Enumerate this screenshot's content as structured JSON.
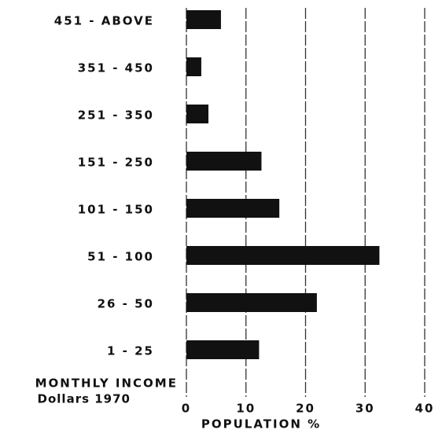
{
  "chart_data": {
    "type": "barh",
    "categories": [
      "1 - 25",
      "26 - 50",
      "51 - 100",
      "101 - 150",
      "151 - 250",
      "251 - 350",
      "351 - 450",
      "451 - ABOVE"
    ],
    "values": [
      12.2,
      21.9,
      32.4,
      15.6,
      12.6,
      3.7,
      2.5,
      5.8
    ],
    "color": "#111111",
    "xlim": [
      0,
      40
    ],
    "xticks": [
      0,
      10,
      20,
      30,
      40
    ],
    "grid": true,
    "xlabel": "POPULATION %",
    "ylabel": [
      "MONTHLY INCOME",
      "Dollars 1970"
    ]
  }
}
